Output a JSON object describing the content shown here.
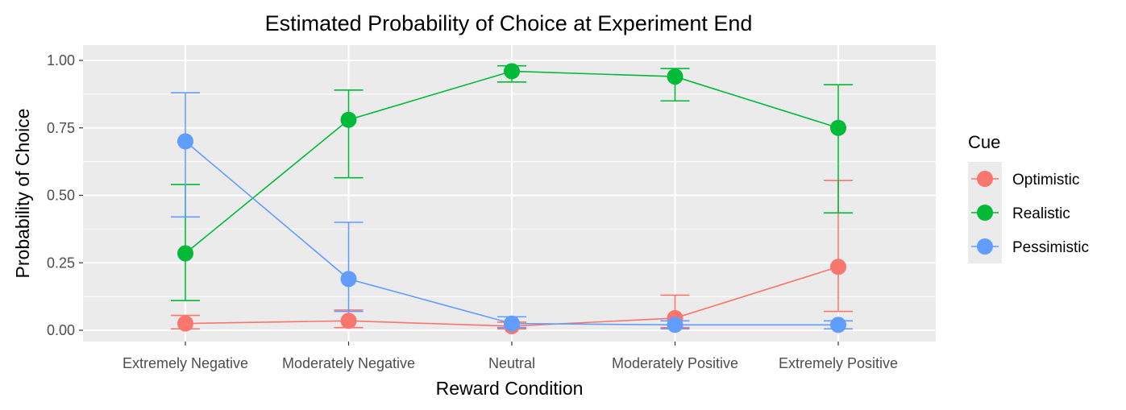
{
  "chart_data": {
    "type": "line",
    "title": "Estimated Probability of Choice at Experiment End",
    "xlabel": "Reward Condition",
    "ylabel": "Probability of Choice",
    "categories": [
      "Extremely Negative",
      "Moderately Negative",
      "Neutral",
      "Moderately Positive",
      "Extremely Positive"
    ],
    "ylim": [
      0,
      1
    ],
    "yticks": [
      "0.00",
      "0.25",
      "0.50",
      "0.75",
      "1.00"
    ],
    "grid": true,
    "legend": {
      "title": "Cue",
      "position": "right"
    },
    "series": [
      {
        "name": "Optimistic",
        "color": "#F8766D",
        "values": [
          0.025,
          0.035,
          0.015,
          0.045,
          0.235
        ],
        "ci_low": [
          0.005,
          0.01,
          0.005,
          0.01,
          0.07
        ],
        "ci_high": [
          0.055,
          0.075,
          0.03,
          0.13,
          0.555
        ]
      },
      {
        "name": "Realistic",
        "color": "#00BA38",
        "values": [
          0.285,
          0.78,
          0.96,
          0.94,
          0.75
        ],
        "ci_low": [
          0.11,
          0.565,
          0.92,
          0.85,
          0.435
        ],
        "ci_high": [
          0.54,
          0.89,
          0.98,
          0.97,
          0.91
        ]
      },
      {
        "name": "Pessimistic",
        "color": "#619CFF",
        "values": [
          0.7,
          0.19,
          0.025,
          0.02,
          0.02
        ],
        "ci_low": [
          0.42,
          0.07,
          0.01,
          0.005,
          0.005
        ],
        "ci_high": [
          0.88,
          0.4,
          0.05,
          0.035,
          0.035
        ]
      }
    ]
  }
}
